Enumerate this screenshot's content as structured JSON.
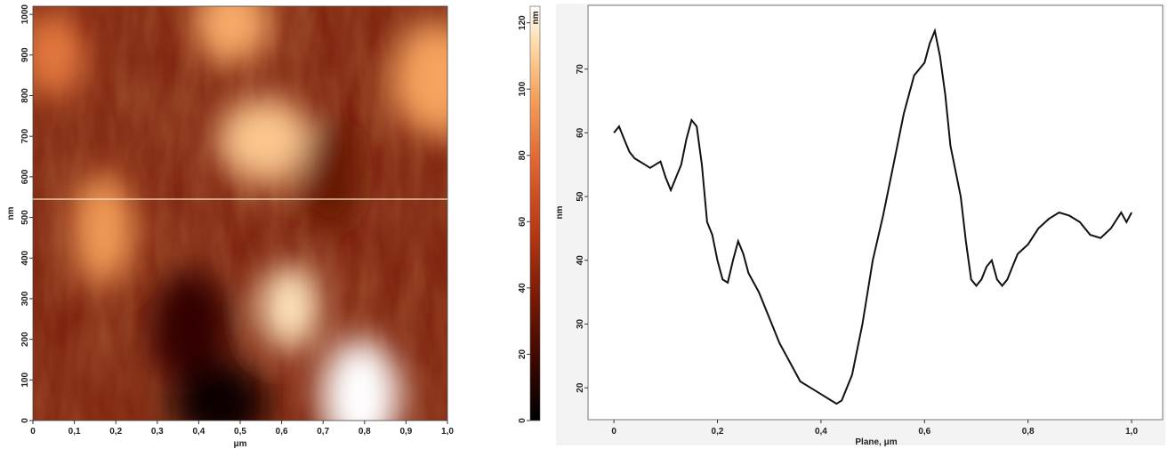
{
  "chart_data": [
    {
      "type": "heatmap",
      "title": "",
      "xlabel": "μm",
      "ylabel": "nm",
      "xlim": [
        0,
        1.0
      ],
      "ylim": [
        0,
        1020
      ],
      "x_ticks": [
        "0",
        "0,1",
        "0,2",
        "0,3",
        "0,4",
        "0,5",
        "0,6",
        "0,7",
        "0,8",
        "0,9",
        "1,0"
      ],
      "y_ticks": [
        "0",
        "100",
        "200",
        "300",
        "400",
        "500",
        "600",
        "700",
        "800",
        "900",
        "1000"
      ],
      "profile_line_y_nm": 545,
      "colorbar": {
        "label": "nm",
        "range": [
          0,
          125
        ],
        "ticks": [
          "0",
          "20",
          "40",
          "60",
          "80",
          "100",
          "120"
        ],
        "colors": [
          "#000000",
          "#3a0700",
          "#7a1a05",
          "#b83a14",
          "#de6430",
          "#f5a05c",
          "#ffe0b0",
          "#ffffff"
        ]
      },
      "features": [
        {
          "x": 0.62,
          "y": 280,
          "height_nm": 110
        },
        {
          "x": 0.79,
          "y": 60,
          "height_nm": 125
        },
        {
          "x": 0.56,
          "y": 690,
          "height_nm": 100
        },
        {
          "x": 0.17,
          "y": 470,
          "height_nm": 88
        },
        {
          "x": 0.48,
          "y": 980,
          "height_nm": 92
        },
        {
          "x": 0.98,
          "y": 840,
          "height_nm": 90
        },
        {
          "x": 0.05,
          "y": 900,
          "height_nm": 78
        },
        {
          "x": 0.38,
          "y": 230,
          "height_nm": 15
        },
        {
          "x": 0.45,
          "y": 40,
          "height_nm": 5
        },
        {
          "x": 0.72,
          "y": 600,
          "height_nm": 30
        }
      ]
    },
    {
      "type": "line",
      "title": "",
      "xlabel": "Plane, μm",
      "ylabel": "nm",
      "xlim": [
        -0.05,
        1.06
      ],
      "ylim": [
        15,
        80
      ],
      "x_ticks": [
        "0",
        "0,2",
        "0,4",
        "0,6",
        "0,8",
        "1,0"
      ],
      "y_ticks": [
        "20",
        "30",
        "40",
        "50",
        "60",
        "70"
      ],
      "grid": false,
      "series": [
        {
          "x": [
            0.0,
            0.01,
            0.02,
            0.03,
            0.04,
            0.05,
            0.06,
            0.07,
            0.08,
            0.09,
            0.1,
            0.11,
            0.12,
            0.13,
            0.14,
            0.15,
            0.16,
            0.17,
            0.18,
            0.19,
            0.2,
            0.21,
            0.22,
            0.23,
            0.24,
            0.25,
            0.26,
            0.28,
            0.3,
            0.32,
            0.34,
            0.36,
            0.38,
            0.4,
            0.42,
            0.43,
            0.44,
            0.46,
            0.48,
            0.5,
            0.52,
            0.54,
            0.56,
            0.58,
            0.6,
            0.61,
            0.62,
            0.63,
            0.64,
            0.65,
            0.66,
            0.67,
            0.68,
            0.69,
            0.7,
            0.71,
            0.72,
            0.73,
            0.74,
            0.75,
            0.76,
            0.77,
            0.78,
            0.8,
            0.82,
            0.84,
            0.86,
            0.88,
            0.9,
            0.92,
            0.94,
            0.96,
            0.98,
            0.99,
            1.0
          ],
          "y": [
            60,
            61,
            59,
            57,
            56,
            55.5,
            55,
            54.5,
            55,
            55.5,
            53,
            51,
            53,
            55,
            59,
            62,
            61,
            55,
            46,
            44,
            40,
            37,
            36.5,
            40,
            43,
            41,
            38,
            35,
            31,
            27,
            24,
            21,
            20,
            19,
            18,
            17.5,
            18,
            22,
            30,
            40,
            47,
            55,
            63,
            69,
            71,
            74,
            76,
            72,
            66,
            58,
            54,
            50,
            43,
            37,
            36,
            37,
            39,
            40,
            37,
            36,
            37,
            39,
            41,
            42.5,
            45,
            46.5,
            47.5,
            47,
            46,
            44,
            43.5,
            45,
            47.5,
            46,
            47.5
          ]
        }
      ]
    }
  ]
}
